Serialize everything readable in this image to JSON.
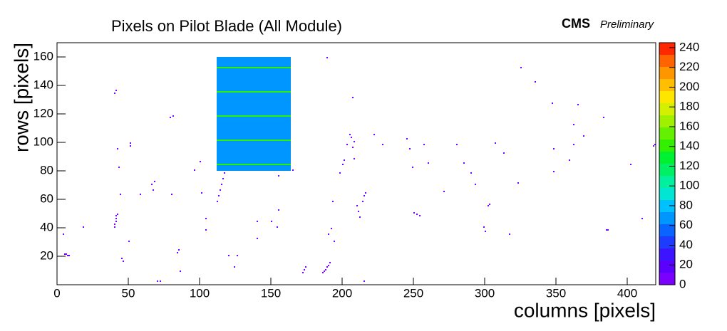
{
  "chart_data": {
    "type": "heatmap",
    "title": "Pixels on Pilot Blade (All Module)",
    "experiment": "CMS",
    "status": "Preliminary",
    "x_label": "columns [pixels]",
    "y_label": "rows [pixels]",
    "xlim": [
      0,
      420
    ],
    "ylim": [
      0,
      170
    ],
    "xticks": [
      0,
      50,
      100,
      150,
      200,
      250,
      300,
      350,
      400
    ],
    "yticks": [
      20,
      40,
      60,
      80,
      100,
      120,
      140,
      160
    ],
    "zlim": [
      0,
      245
    ],
    "zticks": [
      0,
      20,
      40,
      60,
      80,
      100,
      120,
      140,
      160,
      180,
      200,
      220,
      240
    ],
    "colors": [
      "#7a00ff",
      "#5a00ff",
      "#3c14ff",
      "#1e3cff",
      "#0a64ff",
      "#0096ff",
      "#00c0ff",
      "#00e6d2",
      "#00f0a0",
      "#00f064",
      "#00f032",
      "#32f000",
      "#64f000",
      "#a0f000",
      "#d2f000",
      "#ffe600",
      "#ffbe00",
      "#ff9600",
      "#ff6400",
      "#ff2800"
    ],
    "regions": [
      {
        "x": [
          112,
          164
        ],
        "y": [
          80,
          160
        ],
        "value": 65
      },
      {
        "x": [
          112,
          164
        ],
        "y": [
          84,
          85
        ],
        "value": 140
      },
      {
        "x": [
          112,
          164
        ],
        "y": [
          101,
          102
        ],
        "value": 140
      },
      {
        "x": [
          112,
          164
        ],
        "y": [
          118,
          119
        ],
        "value": 140
      },
      {
        "x": [
          112,
          164
        ],
        "y": [
          135,
          136
        ],
        "value": 140
      },
      {
        "x": [
          112,
          164
        ],
        "y": [
          152,
          153
        ],
        "value": 140
      }
    ],
    "hits": {
      "x": [
        5,
        6,
        7,
        8,
        4,
        18,
        40,
        40,
        41,
        41,
        41,
        42,
        40,
        41,
        42,
        43,
        44,
        45,
        46,
        50,
        51,
        51,
        58,
        66,
        67,
        68,
        70,
        72,
        79,
        81,
        84,
        85,
        86,
        80,
        96,
        100,
        101,
        104,
        104,
        112,
        113,
        114,
        115,
        116,
        117,
        120,
        124,
        126,
        140,
        140,
        155,
        154,
        155,
        165,
        190,
        192,
        186,
        187,
        188,
        189,
        190,
        191,
        193,
        194,
        198,
        200,
        201,
        203,
        205,
        206,
        207,
        207,
        208,
        208,
        212,
        214,
        215,
        216,
        215,
        222,
        228,
        245,
        247,
        249,
        250,
        252,
        254,
        257,
        260,
        271,
        280,
        285,
        290,
        293,
        299,
        300,
        307,
        313,
        317,
        323,
        325,
        335,
        347,
        348,
        348,
        359,
        362,
        362,
        365,
        369,
        383,
        385,
        386,
        402,
        410,
        418,
        419,
        150,
        172,
        173,
        174,
        189,
        210,
        211,
        302,
        303
      ],
      "y": [
        21,
        21,
        20,
        20,
        35,
        40,
        40,
        42,
        44,
        46,
        48,
        49,
        134,
        136,
        95,
        82,
        63,
        18,
        16,
        30,
        97,
        99,
        63,
        70,
        66,
        72,
        2,
        2,
        117,
        118,
        22,
        24,
        9,
        63,
        80,
        86,
        64,
        46,
        38,
        58,
        62,
        66,
        70,
        74,
        78,
        20,
        12,
        20,
        44,
        32,
        52,
        40,
        76,
        80,
        35,
        39,
        8,
        9,
        10,
        12,
        13,
        15,
        58,
        30,
        78,
        84,
        87,
        98,
        105,
        103,
        96,
        131,
        100,
        88,
        47,
        58,
        62,
        64,
        2,
        105,
        98,
        102,
        95,
        82,
        50,
        49,
        48,
        98,
        85,
        65,
        98,
        85,
        78,
        70,
        40,
        37,
        99,
        92,
        35,
        71,
        152,
        142,
        127,
        95,
        79,
        87,
        98,
        112,
        126,
        104,
        117,
        38,
        38,
        84,
        46,
        97,
        98,
        44,
        8,
        10,
        12,
        159,
        55,
        51,
        55,
        56
      ],
      "values": [
        3,
        3,
        3,
        3,
        2,
        3,
        4,
        4,
        4,
        4,
        4,
        4,
        3,
        3,
        3,
        3,
        3,
        3,
        3,
        3,
        3,
        3,
        3,
        3,
        3,
        3,
        3,
        3,
        3,
        3,
        3,
        3,
        3,
        3,
        3,
        3,
        3,
        3,
        3,
        4,
        4,
        4,
        4,
        4,
        4,
        2,
        2,
        2,
        3,
        3,
        3,
        3,
        8,
        4,
        3,
        3,
        4,
        4,
        4,
        4,
        4,
        4,
        3,
        3,
        3,
        3,
        3,
        3,
        3,
        3,
        3,
        3,
        3,
        3,
        4,
        4,
        4,
        4,
        3,
        3,
        3,
        3,
        3,
        3,
        4,
        4,
        4,
        3,
        3,
        3,
        3,
        3,
        3,
        3,
        3,
        3,
        3,
        3,
        3,
        3,
        3,
        3,
        3,
        3,
        3,
        3,
        3,
        3,
        3,
        3,
        3,
        4,
        4,
        3,
        3,
        3,
        3,
        3,
        4,
        4,
        4,
        3,
        4,
        4,
        3,
        3
      ]
    }
  }
}
